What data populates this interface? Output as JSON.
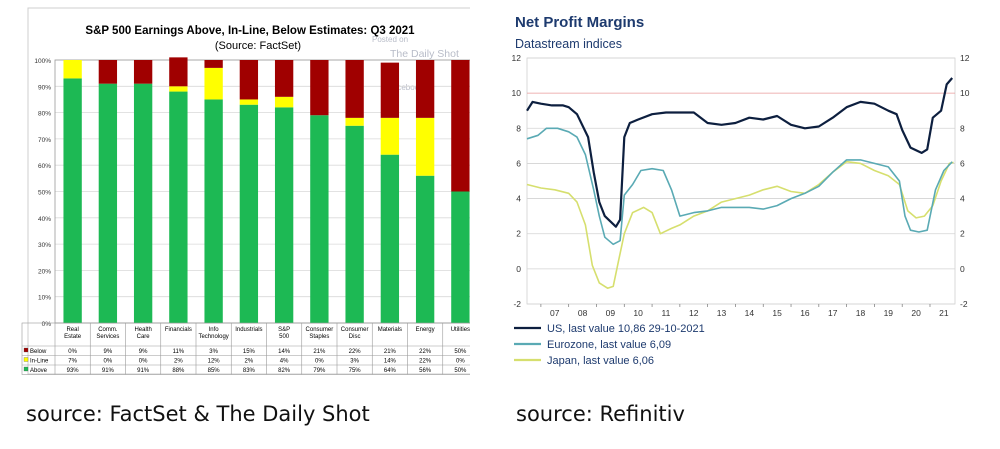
{
  "captions": {
    "left": "source: FactSet & The Daily Shot",
    "right": "source: Refinitiv"
  },
  "colors": {
    "above": "#1db954",
    "inline": "#ffff00",
    "below": "#a00000",
    "us": "#0d1f3f",
    "eurozone": "#5aaab4",
    "japan": "#d6df6e"
  },
  "chart_data": [
    {
      "type": "bar",
      "stacked": true,
      "title": "S&P 500 Earnings Above, In-Line, Below Estimates: Q3 2021",
      "subtitle": "(Source: FactSet)",
      "watermark": [
        "Posted on",
        "The Daily Shot",
        "Facebook"
      ],
      "categories": [
        "Real Estate",
        "Comm. Services",
        "Health Care",
        "Financials",
        "Info Technology",
        "Industrials",
        "S&P 500",
        "Consumer Staples",
        "Consumer Disc",
        "Materials",
        "Energy",
        "Utilities"
      ],
      "series": [
        {
          "name": "Below",
          "values": [
            0,
            9,
            9,
            11,
            3,
            15,
            14,
            21,
            22,
            21,
            22,
            50
          ],
          "labels": [
            "0%",
            "9%",
            "9%",
            "11%",
            "3%",
            "15%",
            "14%",
            "21%",
            "22%",
            "21%",
            "22%",
            "50%"
          ]
        },
        {
          "name": "In-Line",
          "values": [
            7,
            0,
            0,
            2,
            12,
            2,
            4,
            0,
            3,
            14,
            22,
            0
          ],
          "labels": [
            "7%",
            "0%",
            "0%",
            "2%",
            "12%",
            "2%",
            "4%",
            "0%",
            "3%",
            "14%",
            "22%",
            "0%"
          ]
        },
        {
          "name": "Above",
          "values": [
            93,
            91,
            91,
            88,
            85,
            83,
            82,
            79,
            75,
            64,
            56,
            50
          ],
          "labels": [
            "93%",
            "91%",
            "91%",
            "88%",
            "85%",
            "83%",
            "82%",
            "79%",
            "75%",
            "64%",
            "56%",
            "50%"
          ]
        }
      ],
      "y_ticks": [
        "0%",
        "10%",
        "20%",
        "30%",
        "40%",
        "50%",
        "60%",
        "70%",
        "80%",
        "90%",
        "100%"
      ],
      "ylim": [
        0,
        100
      ],
      "grid": true
    },
    {
      "type": "line",
      "title": "Net Profit Margins",
      "subtitle": "Datastream indices",
      "x_ticks": [
        "07",
        "08",
        "09",
        "10",
        "11",
        "12",
        "13",
        "14",
        "15",
        "16",
        "17",
        "18",
        "19",
        "20",
        "21"
      ],
      "x_range": [
        2006.5,
        2021.9
      ],
      "y_ticks": [
        "-2",
        "0",
        "2",
        "4",
        "6",
        "8",
        "10",
        "12"
      ],
      "ylim": [
        -2,
        12
      ],
      "grid": true,
      "legend_position": "bottom-left",
      "series": [
        {
          "name": "US, last value 10,86 29-10-2021",
          "points": [
            [
              2006.5,
              9.0
            ],
            [
              2006.7,
              9.5
            ],
            [
              2007.0,
              9.4
            ],
            [
              2007.4,
              9.3
            ],
            [
              2007.8,
              9.3
            ],
            [
              2008.0,
              9.2
            ],
            [
              2008.3,
              8.8
            ],
            [
              2008.7,
              7.5
            ],
            [
              2008.9,
              5.5
            ],
            [
              2009.1,
              3.8
            ],
            [
              2009.3,
              3.0
            ],
            [
              2009.5,
              2.7
            ],
            [
              2009.7,
              2.4
            ],
            [
              2009.85,
              2.8
            ],
            [
              2010.0,
              7.5
            ],
            [
              2010.2,
              8.3
            ],
            [
              2010.5,
              8.5
            ],
            [
              2011.0,
              8.8
            ],
            [
              2011.5,
              8.9
            ],
            [
              2012.0,
              8.9
            ],
            [
              2012.5,
              8.9
            ],
            [
              2013.0,
              8.3
            ],
            [
              2013.5,
              8.2
            ],
            [
              2014.0,
              8.3
            ],
            [
              2014.5,
              8.6
            ],
            [
              2015.0,
              8.5
            ],
            [
              2015.5,
              8.7
            ],
            [
              2016.0,
              8.2
            ],
            [
              2016.5,
              8.0
            ],
            [
              2017.0,
              8.1
            ],
            [
              2017.5,
              8.6
            ],
            [
              2018.0,
              9.2
            ],
            [
              2018.5,
              9.5
            ],
            [
              2019.0,
              9.4
            ],
            [
              2019.5,
              9.0
            ],
            [
              2019.8,
              8.8
            ],
            [
              2020.0,
              7.9
            ],
            [
              2020.3,
              6.9
            ],
            [
              2020.7,
              6.6
            ],
            [
              2020.9,
              6.8
            ],
            [
              2021.1,
              8.6
            ],
            [
              2021.4,
              9.0
            ],
            [
              2021.6,
              10.5
            ],
            [
              2021.8,
              10.86
            ]
          ]
        },
        {
          "name": "Eurozone, last value 6,09",
          "points": [
            [
              2006.5,
              7.4
            ],
            [
              2006.9,
              7.6
            ],
            [
              2007.2,
              8.0
            ],
            [
              2007.6,
              8.0
            ],
            [
              2008.0,
              7.8
            ],
            [
              2008.3,
              7.5
            ],
            [
              2008.6,
              6.5
            ],
            [
              2008.9,
              4.5
            ],
            [
              2009.1,
              3.0
            ],
            [
              2009.3,
              1.8
            ],
            [
              2009.6,
              1.4
            ],
            [
              2009.85,
              1.6
            ],
            [
              2010.0,
              4.2
            ],
            [
              2010.3,
              4.8
            ],
            [
              2010.6,
              5.6
            ],
            [
              2011.0,
              5.7
            ],
            [
              2011.4,
              5.6
            ],
            [
              2011.7,
              4.5
            ],
            [
              2012.0,
              3.0
            ],
            [
              2012.5,
              3.2
            ],
            [
              2013.0,
              3.3
            ],
            [
              2013.5,
              3.5
            ],
            [
              2014.0,
              3.5
            ],
            [
              2014.5,
              3.5
            ],
            [
              2015.0,
              3.4
            ],
            [
              2015.5,
              3.6
            ],
            [
              2016.0,
              4.0
            ],
            [
              2016.5,
              4.3
            ],
            [
              2017.0,
              4.7
            ],
            [
              2017.5,
              5.5
            ],
            [
              2018.0,
              6.2
            ],
            [
              2018.5,
              6.2
            ],
            [
              2019.0,
              6.0
            ],
            [
              2019.5,
              5.8
            ],
            [
              2019.9,
              5.0
            ],
            [
              2020.1,
              3.0
            ],
            [
              2020.3,
              2.2
            ],
            [
              2020.6,
              2.1
            ],
            [
              2020.9,
              2.2
            ],
            [
              2021.2,
              4.5
            ],
            [
              2021.5,
              5.6
            ],
            [
              2021.8,
              6.09
            ]
          ]
        },
        {
          "name": "Japan, last value 6,06",
          "points": [
            [
              2006.5,
              4.8
            ],
            [
              2007.0,
              4.6
            ],
            [
              2007.5,
              4.5
            ],
            [
              2008.0,
              4.3
            ],
            [
              2008.3,
              3.8
            ],
            [
              2008.6,
              2.5
            ],
            [
              2008.85,
              0.2
            ],
            [
              2009.1,
              -0.8
            ],
            [
              2009.4,
              -1.1
            ],
            [
              2009.6,
              -1.0
            ],
            [
              2009.8,
              0.5
            ],
            [
              2010.0,
              2.0
            ],
            [
              2010.3,
              3.2
            ],
            [
              2010.7,
              3.5
            ],
            [
              2011.0,
              3.2
            ],
            [
              2011.3,
              2.0
            ],
            [
              2011.7,
              2.3
            ],
            [
              2012.0,
              2.5
            ],
            [
              2012.5,
              3.0
            ],
            [
              2013.0,
              3.3
            ],
            [
              2013.5,
              3.8
            ],
            [
              2014.0,
              4.0
            ],
            [
              2014.5,
              4.2
            ],
            [
              2015.0,
              4.5
            ],
            [
              2015.5,
              4.7
            ],
            [
              2016.0,
              4.4
            ],
            [
              2016.5,
              4.3
            ],
            [
              2017.0,
              4.8
            ],
            [
              2017.5,
              5.5
            ],
            [
              2018.0,
              6.1
            ],
            [
              2018.5,
              6.0
            ],
            [
              2019.0,
              5.6
            ],
            [
              2019.5,
              5.3
            ],
            [
              2019.9,
              4.8
            ],
            [
              2020.2,
              3.3
            ],
            [
              2020.5,
              2.9
            ],
            [
              2020.8,
              3.0
            ],
            [
              2021.1,
              3.6
            ],
            [
              2021.4,
              5.0
            ],
            [
              2021.7,
              6.0
            ],
            [
              2021.85,
              6.06
            ]
          ]
        }
      ]
    }
  ]
}
